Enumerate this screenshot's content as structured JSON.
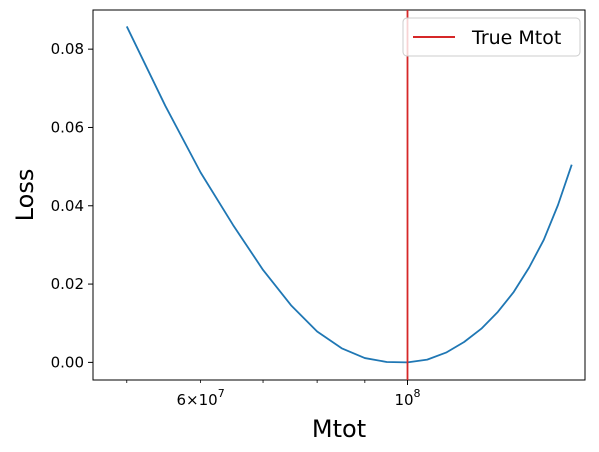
{
  "chart_data": {
    "type": "line",
    "xscale": "log",
    "xlabel": "Mtot",
    "ylabel": "Loss",
    "xlim": [
      46000000,
      155000000
    ],
    "ylim": [
      -0.0045,
      0.09
    ],
    "x_major_ticks": [
      {
        "value": 100000000,
        "label": "10^8"
      }
    ],
    "x_labeled_minor_ticks": [
      {
        "value": 60000000,
        "label": "6×10^7"
      }
    ],
    "x_minor_ticks": [
      50000000,
      60000000,
      70000000,
      80000000,
      90000000
    ],
    "y_ticks": [
      0.0,
      0.02,
      0.04,
      0.06,
      0.08
    ],
    "y_tick_labels": [
      "0.00",
      "0.02",
      "0.04",
      "0.06",
      "0.08"
    ],
    "series": [
      {
        "color": "#1f77b4",
        "x": [
          50000000,
          55000000,
          60000000,
          65000000,
          70000000,
          75000000,
          80000000,
          85000000,
          90000000,
          95000000,
          100000000,
          105000000,
          110000000,
          115000000,
          120000000,
          125000000,
          130000000,
          135000000,
          140000000,
          145000000,
          150000000
        ],
        "y": [
          0.0858,
          0.0655,
          0.0485,
          0.0351,
          0.0236,
          0.0146,
          0.0079,
          0.0036,
          0.0011,
          0.0001,
          0.0,
          0.0007,
          0.0025,
          0.0052,
          0.0086,
          0.0129,
          0.018,
          0.0242,
          0.0313,
          0.0402,
          0.0505
        ]
      }
    ],
    "vertical_line": {
      "x": 100000000,
      "name": "True Mtot",
      "color": "#d62728"
    },
    "legend": {
      "position": "top-right",
      "entries": [
        "True Mtot"
      ]
    },
    "grid": false
  }
}
